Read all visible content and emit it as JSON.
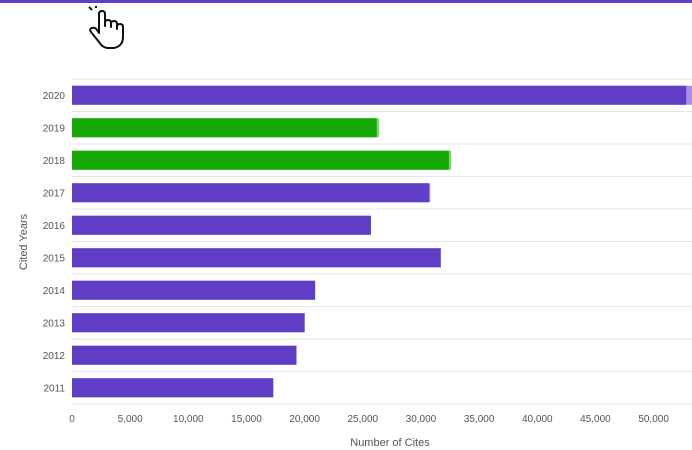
{
  "colors": {
    "accent": "#5f3dc4",
    "bar_default": "#5f3dc4",
    "bar_highlight": "#16a805",
    "bar_extension_default": "#a98ee8",
    "bar_extension_highlight": "#7fd66f",
    "gridline": "#e6e6e6"
  },
  "cursor": {
    "icon": "hand-pointer-icon"
  },
  "chart_data": {
    "type": "bar",
    "orientation": "horizontal",
    "categories": [
      "2020",
      "2019",
      "2018",
      "2017",
      "2016",
      "2015",
      "2014",
      "2013",
      "2012",
      "2011"
    ],
    "values": [
      52800,
      26200,
      32400,
      30700,
      25700,
      31700,
      20900,
      20000,
      19300,
      17300
    ],
    "extension_values": [
      53600,
      26400,
      32600,
      30800,
      25700,
      31700,
      20900,
      20000,
      19300,
      17300
    ],
    "highlighted": [
      "2019",
      "2018"
    ],
    "xlabel": "Number of Cites",
    "ylabel": "Cited Years",
    "xlim": [
      0,
      53300
    ],
    "x_ticks": [
      0,
      5000,
      10000,
      15000,
      20000,
      25000,
      30000,
      35000,
      40000,
      45000,
      50000
    ],
    "x_tick_labels": [
      "0",
      "5,000",
      "10,000",
      "15,000",
      "20,000",
      "25,000",
      "30,000",
      "35,000",
      "40,000",
      "45,000",
      "50,000"
    ],
    "grid": true,
    "legend": "none"
  }
}
